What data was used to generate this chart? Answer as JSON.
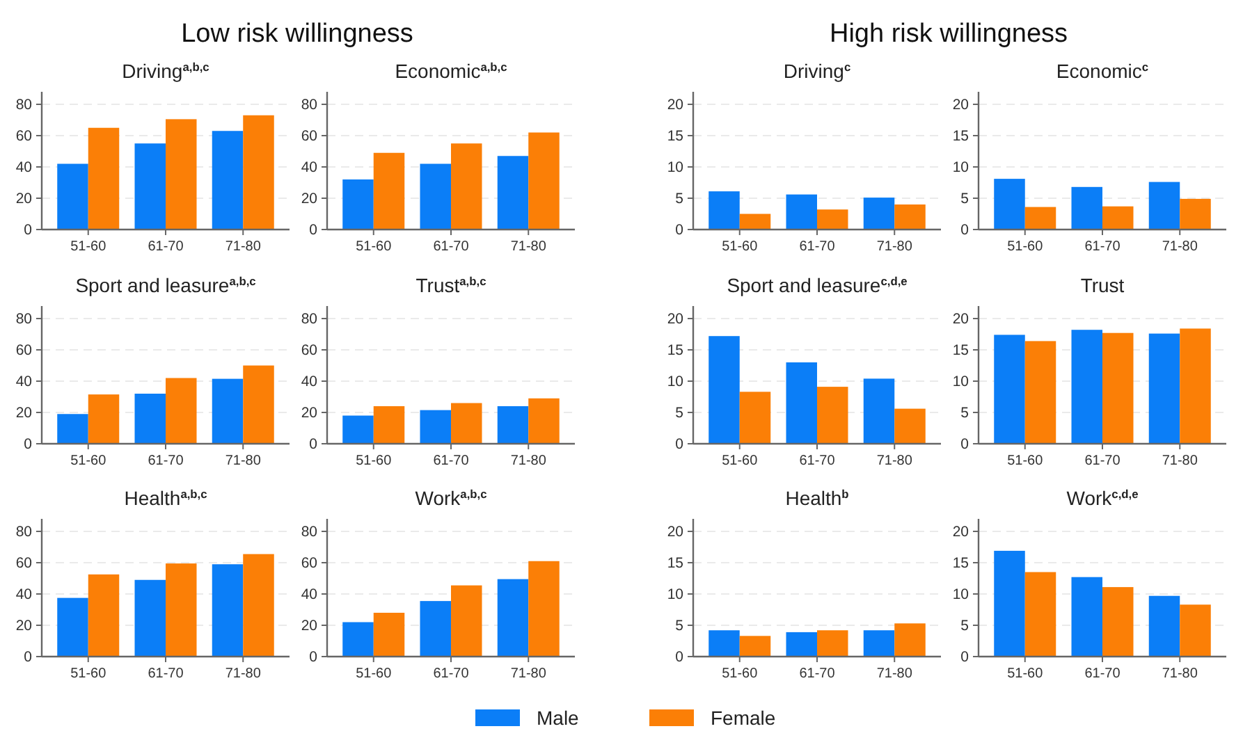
{
  "chart_data": [
    {
      "type": "bar",
      "title": "Driving$^{a,b,c}$",
      "annotations": [
        "Low risk willingness"
      ],
      "categories": [
        "51-60",
        "61-70",
        "71-80"
      ],
      "series": [
        {
          "name": "Male",
          "color": "#0b7ef7",
          "values": [
            42,
            55,
            63
          ]
        },
        {
          "name": "Female",
          "color": "#fb7f06",
          "values": [
            65,
            70.5,
            73
          ]
        }
      ],
      "ylim": [
        0,
        88
      ],
      "yticks": [
        0,
        20,
        40,
        60,
        80
      ],
      "grid": "y",
      "legend": "bottom"
    },
    {
      "type": "bar",
      "title": "Economic$^{a,b,c}$",
      "categories": [
        "51-60",
        "61-70",
        "71-80"
      ],
      "series": [
        {
          "color": "#0b7ef7",
          "values": [
            32,
            42,
            47
          ]
        },
        {
          "color": "#fb7f06",
          "values": [
            49,
            55,
            62
          ]
        }
      ],
      "ylim": [
        0,
        88
      ],
      "yticks": [
        0,
        20,
        40,
        60,
        80
      ],
      "grid": "y"
    },
    {
      "type": "bar",
      "title": "Driving$^{c}$",
      "annotations": [
        "High risk willingness"
      ],
      "categories": [
        "51-60",
        "61-70",
        "71-80"
      ],
      "series": [
        {
          "color": "#0b7ef7",
          "values": [
            6.1,
            5.6,
            5.1
          ]
        },
        {
          "color": "#fb7f06",
          "values": [
            2.5,
            3.2,
            4.0
          ]
        }
      ],
      "ylim": [
        0,
        22
      ],
      "yticks": [
        0,
        5,
        10,
        15,
        20
      ],
      "grid": "y"
    },
    {
      "type": "bar",
      "title": "Economic$^{c}$",
      "categories": [
        "51-60",
        "61-70",
        "71-80"
      ],
      "series": [
        {
          "color": "#0b7ef7",
          "values": [
            8.1,
            6.8,
            7.6
          ]
        },
        {
          "color": "#fb7f06",
          "values": [
            3.6,
            3.7,
            4.9
          ]
        }
      ],
      "ylim": [
        0,
        22
      ],
      "yticks": [
        0,
        5,
        10,
        15,
        20
      ],
      "grid": "y"
    },
    {
      "type": "bar",
      "title": "Sport and leasure$^{a,b,c}$",
      "categories": [
        "51-60",
        "61-70",
        "71-80"
      ],
      "series": [
        {
          "color": "#0b7ef7",
          "values": [
            19,
            32,
            41.5
          ]
        },
        {
          "color": "#fb7f06",
          "values": [
            31.5,
            42,
            50
          ]
        }
      ],
      "ylim": [
        0,
        88
      ],
      "yticks": [
        0,
        20,
        40,
        60,
        80
      ],
      "grid": "y"
    },
    {
      "type": "bar",
      "title": "Trust$^{a,b,c}$",
      "categories": [
        "51-60",
        "61-70",
        "71-80"
      ],
      "series": [
        {
          "color": "#0b7ef7",
          "values": [
            18,
            21.5,
            24
          ]
        },
        {
          "color": "#fb7f06",
          "values": [
            24,
            26,
            29
          ]
        }
      ],
      "ylim": [
        0,
        88
      ],
      "yticks": [
        0,
        20,
        40,
        60,
        80
      ],
      "grid": "y"
    },
    {
      "type": "bar",
      "title": "Sport and leasure$^{c,d,e}$",
      "categories": [
        "51-60",
        "61-70",
        "71-80"
      ],
      "series": [
        {
          "color": "#0b7ef7",
          "values": [
            17.2,
            13,
            10.4
          ]
        },
        {
          "color": "#fb7f06",
          "values": [
            8.3,
            9.1,
            5.6
          ]
        }
      ],
      "ylim": [
        0,
        22
      ],
      "yticks": [
        0,
        5,
        10,
        15,
        20
      ],
      "grid": "y"
    },
    {
      "type": "bar",
      "title": "Trust",
      "categories": [
        "51-60",
        "61-70",
        "71-80"
      ],
      "series": [
        {
          "color": "#0b7ef7",
          "values": [
            17.4,
            18.2,
            17.6
          ]
        },
        {
          "color": "#fb7f06",
          "values": [
            16.4,
            17.7,
            18.4
          ]
        }
      ],
      "ylim": [
        0,
        22
      ],
      "yticks": [
        0,
        5,
        10,
        15,
        20
      ],
      "grid": "y"
    },
    {
      "type": "bar",
      "title": "Health$^{a,b,c}$",
      "categories": [
        "51-60",
        "61-70",
        "71-80"
      ],
      "series": [
        {
          "color": "#0b7ef7",
          "values": [
            37.5,
            49,
            59
          ]
        },
        {
          "color": "#fb7f06",
          "values": [
            52.5,
            59.5,
            65.5
          ]
        }
      ],
      "ylim": [
        0,
        88
      ],
      "yticks": [
        0,
        20,
        40,
        60,
        80
      ],
      "grid": "y"
    },
    {
      "type": "bar",
      "title": "Work$^{a,b,c}$",
      "categories": [
        "51-60",
        "61-70",
        "71-80"
      ],
      "series": [
        {
          "color": "#0b7ef7",
          "values": [
            22,
            35.5,
            49.5
          ]
        },
        {
          "color": "#fb7f06",
          "values": [
            28,
            45.5,
            61
          ]
        }
      ],
      "ylim": [
        0,
        88
      ],
      "yticks": [
        0,
        20,
        40,
        60,
        80
      ],
      "grid": "y"
    },
    {
      "type": "bar",
      "title": "Health$^{b}$",
      "categories": [
        "51-60",
        "61-70",
        "71-80"
      ],
      "series": [
        {
          "color": "#0b7ef7",
          "values": [
            4.2,
            3.9,
            4.2
          ]
        },
        {
          "color": "#fb7f06",
          "values": [
            3.3,
            4.2,
            5.3
          ]
        }
      ],
      "ylim": [
        0,
        22
      ],
      "yticks": [
        0,
        5,
        10,
        15,
        20
      ],
      "grid": "y"
    },
    {
      "type": "bar",
      "title": "Work$^{c,d,e}$",
      "categories": [
        "51-60",
        "61-70",
        "71-80"
      ],
      "series": [
        {
          "color": "#0b7ef7",
          "values": [
            16.9,
            12.7,
            9.7
          ]
        },
        {
          "color": "#fb7f06",
          "values": [
            13.5,
            11.1,
            8.3
          ]
        }
      ],
      "ylim": [
        0,
        22
      ],
      "yticks": [
        0,
        5,
        10,
        15,
        20
      ],
      "grid": "y"
    }
  ]
}
